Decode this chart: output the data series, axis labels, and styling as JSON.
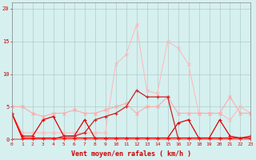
{
  "x": [
    0,
    1,
    2,
    3,
    4,
    5,
    6,
    7,
    8,
    9,
    10,
    11,
    12,
    13,
    14,
    15,
    16,
    17,
    18,
    19,
    20,
    21,
    22,
    23
  ],
  "gust_top": [
    4,
    1,
    1,
    1,
    1,
    1,
    1,
    1,
    1,
    1,
    11.5,
    13,
    17.5,
    7.5,
    7,
    15,
    14,
    11.5,
    4,
    4,
    4,
    3,
    5,
    4
  ],
  "gust_mid": [
    5,
    5,
    4,
    3.5,
    4,
    4,
    4.5,
    4,
    4,
    4.5,
    5,
    5.5,
    4,
    5,
    5,
    6.5,
    4,
    4,
    4,
    4,
    4,
    6.5,
    4,
    4
  ],
  "wind_mean": [
    4,
    0.2,
    0.2,
    0.2,
    0.2,
    0.2,
    0.2,
    0.2,
    0.2,
    0.2,
    0.2,
    0.2,
    0.2,
    0.2,
    0.2,
    0.2,
    0.2,
    0.2,
    0.2,
    0.2,
    0.2,
    0.2,
    0.2,
    0.2
  ],
  "wind_mean2": [
    0,
    0,
    0,
    0,
    0,
    0.5,
    0.5,
    1.0,
    3,
    3.5,
    4,
    5,
    7.5,
    6.5,
    6.5,
    6.5,
    0.2,
    0.2,
    0.2,
    0.2,
    0.2,
    0.2,
    0.2,
    0.2
  ],
  "diag": [
    4,
    0.5,
    0.5,
    3,
    3.5,
    0.5,
    0.5,
    3,
    0.2,
    0.2,
    0.2,
    0.2,
    0.2,
    0.2,
    0.2,
    0.2,
    2.5,
    3,
    0.2,
    0.2,
    3,
    0.5,
    0.2,
    0.5
  ],
  "bg_color": "#d6f0f0",
  "grid_color": "#b0c8c8",
  "color_lightest": "#ffbbbb",
  "color_light": "#ffaaaa",
  "color_dark_red": "#dd0000",
  "color_mid_red": "#cc2222",
  "xlabel": "Vent moyen/en rafales ( km/h )",
  "ylabel_ticks": [
    0,
    5,
    10,
    15,
    20
  ],
  "xlim": [
    0,
    23
  ],
  "ylim": [
    0,
    21
  ]
}
